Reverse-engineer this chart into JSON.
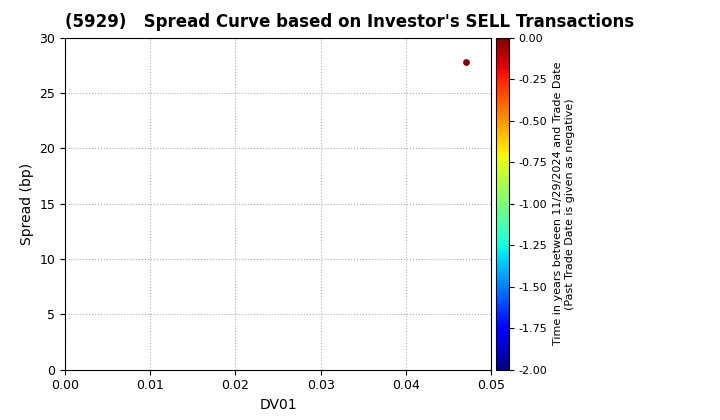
{
  "title": "(5929)   Spread Curve based on Investor's SELL Transactions",
  "xlabel": "DV01",
  "ylabel": "Spread (bp)",
  "xlim": [
    0.0,
    0.05
  ],
  "ylim": [
    0,
    30
  ],
  "xticks": [
    0.0,
    0.01,
    0.02,
    0.03,
    0.04,
    0.05
  ],
  "yticks": [
    0,
    5,
    10,
    15,
    20,
    25,
    30
  ],
  "scatter_x": [
    0.047
  ],
  "scatter_y": [
    27.8
  ],
  "scatter_color_value": [
    -0.02
  ],
  "colorbar_vmin": -2.0,
  "colorbar_vmax": 0.0,
  "colorbar_ticks": [
    0.0,
    -0.25,
    -0.5,
    -0.75,
    -1.0,
    -1.25,
    -1.5,
    -1.75,
    -2.0
  ],
  "colorbar_label_line1": "Time in years between 11/29/2024 and Trade Date",
  "colorbar_label_line2": "(Past Trade Date is given as negative)",
  "cmap": "jet",
  "background_color": "#ffffff",
  "grid_color": "#aaaaaa",
  "title_fontsize": 12,
  "axis_label_fontsize": 10,
  "tick_fontsize": 9,
  "colorbar_tick_fontsize": 8,
  "colorbar_label_fontsize": 8,
  "marker_size": 15
}
